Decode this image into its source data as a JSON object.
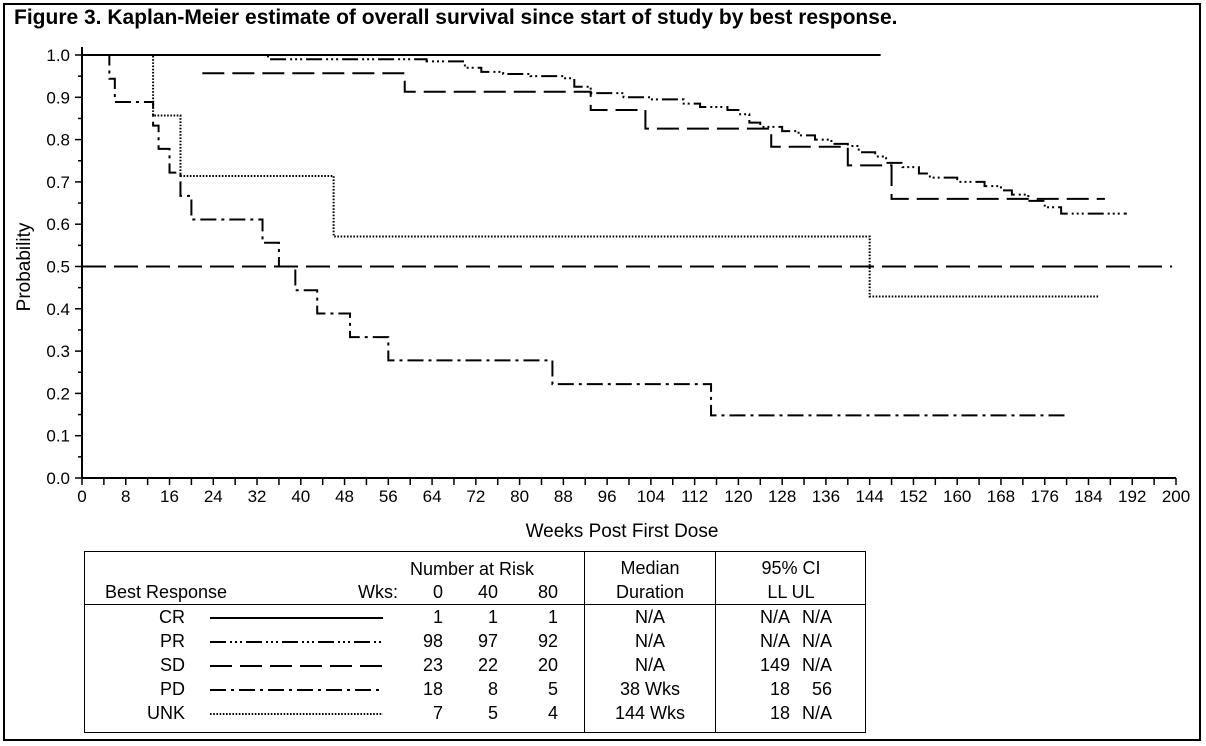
{
  "title": "Figure 3. Kaplan-Meier estimate of overall survival since start of study by best response.",
  "chart_data": {
    "type": "line",
    "xlabel": "Weeks Post First Dose",
    "ylabel": "Probability",
    "xlim": [
      0,
      200
    ],
    "ylim": [
      0,
      1.0
    ],
    "xticks": [
      "0",
      "8",
      "16",
      "24",
      "32",
      "40",
      "48",
      "56",
      "64",
      "72",
      "80",
      "88",
      "96",
      "104",
      "112",
      "120",
      "128",
      "136",
      "144",
      "152",
      "160",
      "168",
      "176",
      "184",
      "192",
      "200"
    ],
    "yticks": [
      "0.0",
      "0.1",
      "0.2",
      "0.3",
      "0.4",
      "0.5",
      "0.6",
      "0.7",
      "0.8",
      "0.9",
      "1.0"
    ],
    "reference_line": {
      "y": 0.5
    },
    "series": [
      {
        "name": "CR",
        "style": "solid",
        "steps": [
          [
            0,
            1.0
          ],
          [
            146,
            1.0
          ]
        ]
      },
      {
        "name": "PR",
        "style": "dash-dot-dot",
        "steps": [
          [
            22,
            1.0
          ],
          [
            34,
            0.99
          ],
          [
            55,
            0.99
          ],
          [
            63,
            0.985
          ],
          [
            70,
            0.97
          ],
          [
            73,
            0.96
          ],
          [
            77,
            0.955
          ],
          [
            82,
            0.95
          ],
          [
            88,
            0.945
          ],
          [
            90,
            0.925
          ],
          [
            93,
            0.91
          ],
          [
            99,
            0.9
          ],
          [
            104,
            0.895
          ],
          [
            110,
            0.885
          ],
          [
            113,
            0.877
          ],
          [
            118,
            0.87
          ],
          [
            120,
            0.86
          ],
          [
            122,
            0.84
          ],
          [
            124,
            0.83
          ],
          [
            128,
            0.82
          ],
          [
            131,
            0.81
          ],
          [
            134,
            0.8
          ],
          [
            137,
            0.79
          ],
          [
            140,
            0.785
          ],
          [
            142,
            0.77
          ],
          [
            145,
            0.76
          ],
          [
            147,
            0.745
          ],
          [
            150,
            0.735
          ],
          [
            153,
            0.72
          ],
          [
            155,
            0.71
          ],
          [
            160,
            0.7
          ],
          [
            165,
            0.69
          ],
          [
            168,
            0.68
          ],
          [
            170,
            0.67
          ],
          [
            173,
            0.655
          ],
          [
            176,
            0.64
          ],
          [
            179,
            0.625
          ],
          [
            191,
            0.625
          ]
        ]
      },
      {
        "name": "SD",
        "style": "long-dash",
        "steps": [
          [
            22,
            0.957
          ],
          [
            59,
            0.913
          ],
          [
            93,
            0.87
          ],
          [
            103,
            0.826
          ],
          [
            126,
            0.783
          ],
          [
            140,
            0.739
          ],
          [
            148,
            0.66
          ],
          [
            187,
            0.66
          ]
        ]
      },
      {
        "name": "PD",
        "style": "dash-dot",
        "steps": [
          [
            4,
            1.0
          ],
          [
            5,
            0.944
          ],
          [
            6,
            0.889
          ],
          [
            13,
            0.833
          ],
          [
            14,
            0.778
          ],
          [
            16,
            0.722
          ],
          [
            18,
            0.667
          ],
          [
            20,
            0.611
          ],
          [
            33,
            0.556
          ],
          [
            36,
            0.5
          ],
          [
            39,
            0.444
          ],
          [
            43,
            0.389
          ],
          [
            49,
            0.333
          ],
          [
            56,
            0.278
          ],
          [
            86,
            0.222
          ],
          [
            115,
            0.148
          ],
          [
            180,
            0.148
          ]
        ]
      },
      {
        "name": "UNK",
        "style": "dotted",
        "steps": [
          [
            12,
            1.0
          ],
          [
            13,
            0.857
          ],
          [
            18,
            0.714
          ],
          [
            46,
            0.571
          ],
          [
            144,
            0.429
          ],
          [
            186,
            0.429
          ]
        ]
      }
    ]
  },
  "legend_table": {
    "number_at_risk_label": "Number at Risk",
    "best_response_label": "Best Response",
    "wks_label": "Wks:",
    "wks": [
      "0",
      "40",
      "80"
    ],
    "median_label_1": "Median",
    "median_label_2": "Duration",
    "ci_label_1": "95% CI",
    "ci_label_2": "LL UL",
    "rows": [
      {
        "name": "CR",
        "style": "solid",
        "risk": [
          "1",
          "1",
          "1"
        ],
        "median": "N/A",
        "ll": "N/A",
        "ul": "N/A"
      },
      {
        "name": "PR",
        "style": "dash-dot-dot",
        "risk": [
          "98",
          "97",
          "92"
        ],
        "median": "N/A",
        "ll": "N/A",
        "ul": "N/A"
      },
      {
        "name": "SD",
        "style": "long-dash",
        "risk": [
          "23",
          "22",
          "20"
        ],
        "median": "N/A",
        "ll": "149",
        "ul": "N/A"
      },
      {
        "name": "PD",
        "style": "dash-dot",
        "risk": [
          "18",
          "8",
          "5"
        ],
        "median": "38 Wks",
        "ll": "18",
        "ul": "56"
      },
      {
        "name": "UNK",
        "style": "dotted",
        "risk": [
          "7",
          "5",
          "4"
        ],
        "median": "144 Wks",
        "ll": "18",
        "ul": "N/A"
      }
    ]
  }
}
